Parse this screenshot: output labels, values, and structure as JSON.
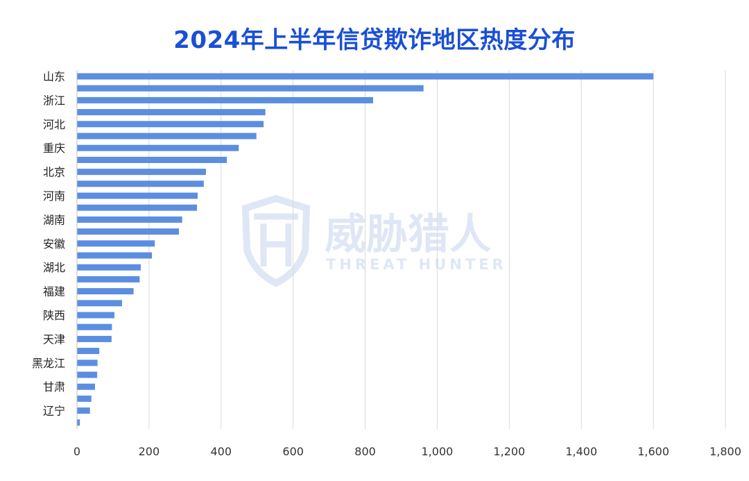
{
  "chart_data": {
    "type": "bar",
    "orientation": "horizontal",
    "title": "2024年上半年信贷欺诈地区热度分布",
    "categories": [
      "山东",
      "",
      "浙江",
      "",
      "河北",
      "",
      "重庆",
      "",
      "北京",
      "",
      "河南",
      "",
      "湖南",
      "",
      "安徽",
      "",
      "湖北",
      "",
      "福建",
      "",
      "陕西",
      "",
      "天津",
      "",
      "黑龙江",
      "",
      "甘肃",
      "",
      "辽宁",
      ""
    ],
    "values": [
      1600,
      962,
      822,
      523,
      518,
      498,
      449,
      416,
      358,
      352,
      335,
      333,
      292,
      283,
      216,
      208,
      177,
      174,
      157,
      125,
      104,
      97,
      96,
      62,
      57,
      56,
      50,
      40,
      36,
      8
    ],
    "xlim": [
      0,
      1800
    ],
    "x_ticks": [
      "0",
      "200",
      "400",
      "600",
      "800",
      "1,000",
      "1,200",
      "1,400",
      "1,600",
      "1,800"
    ],
    "x_tick_values": [
      0,
      200,
      400,
      600,
      800,
      1000,
      1200,
      1400,
      1600,
      1800
    ],
    "grid": true,
    "bar_color": "#5b8ee0",
    "grid_color": "#d9d9d9",
    "title_color": "#1a4fd6"
  },
  "watermark": {
    "name": "威胁猎人",
    "subtitle": "THREAT HUNTER",
    "color": "#dfe7f6"
  }
}
